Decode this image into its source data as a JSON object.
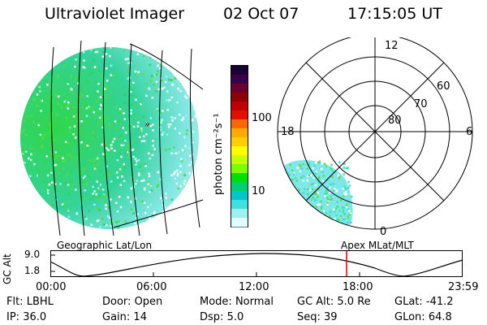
{
  "header": {
    "instrument": "Ultraviolet Imager",
    "date": "02 Oct 07",
    "time": "17:15:05 UT"
  },
  "left_image": {
    "caption": "Geographic Lat/Lon",
    "marker": "»"
  },
  "colorbar": {
    "unit_label": "photon cm⁻²s⁻¹",
    "ticks": [
      "100",
      "10"
    ],
    "colors_top_to_bottom": [
      "#1a0033",
      "#3a0048",
      "#6a0030",
      "#900000",
      "#c00000",
      "#e01000",
      "#ff6600",
      "#ffaa00",
      "#ffd000",
      "#ffff00",
      "#c8ff00",
      "#7cff00",
      "#00e000",
      "#00d070",
      "#00c8c8",
      "#40e0e0",
      "#a0f0f0",
      "#e0ffff"
    ]
  },
  "polar_plot": {
    "caption": "Apex MLat/MLT",
    "mlt_labels": {
      "top": "12",
      "left": "18",
      "right": "6",
      "bottom": "0"
    },
    "mlat_labels": [
      "60",
      "70",
      "80"
    ]
  },
  "altitude_plot": {
    "ylabel": "GC Alt",
    "yticks": [
      "9.0",
      "1.8"
    ],
    "xticks": [
      "00:00",
      "06:00",
      "12:00",
      "18:00",
      "23:59"
    ],
    "current_time_marker": "17:15"
  },
  "status": [
    [
      {
        "label": "Flt:",
        "value": "LBHL"
      },
      {
        "label": "Door:",
        "value": "Open"
      },
      {
        "label": "Mode:",
        "value": "Normal"
      },
      {
        "label": "GC Alt:",
        "value": "5.0 Re"
      },
      {
        "label": "GLat:",
        "value": "-41.2"
      }
    ],
    [
      {
        "label": "IP:",
        "value": "36.0"
      },
      {
        "label": "Gain:",
        "value": "14"
      },
      {
        "label": "Dsp:",
        "value": "5.0"
      },
      {
        "label": "Seq:",
        "value": "39"
      },
      {
        "label": "GLon:",
        "value": "64.8"
      }
    ]
  ]
}
